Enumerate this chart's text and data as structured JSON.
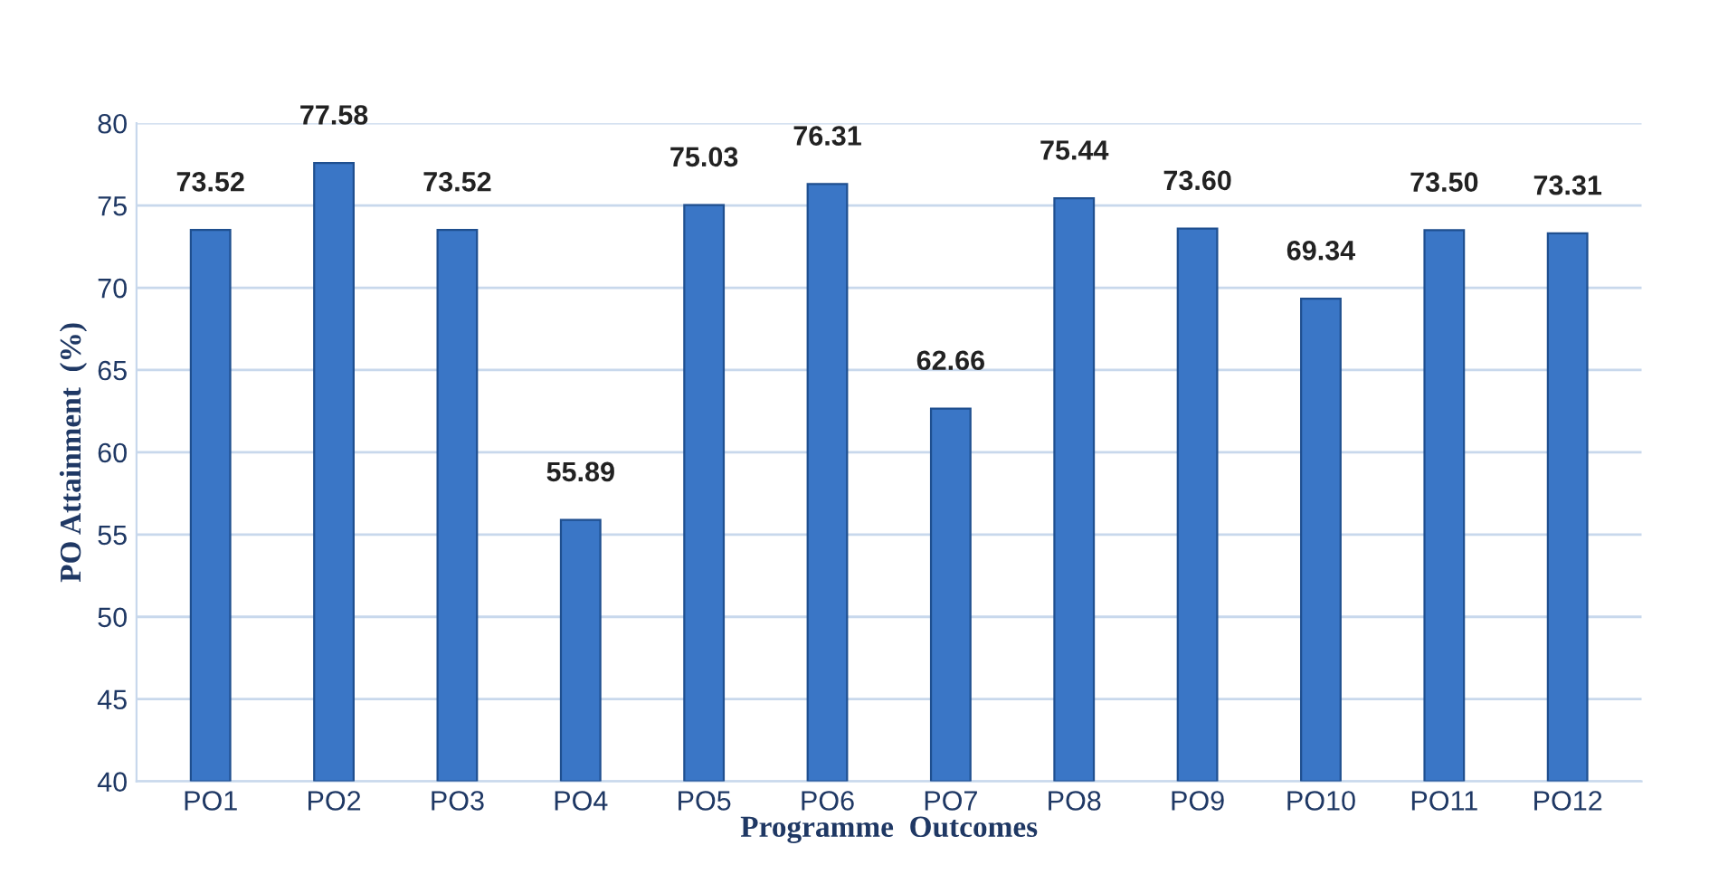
{
  "chart_data": {
    "type": "bar",
    "xlabel": "Programme  Outcomes",
    "ylabel": "PO Attainment  (%)",
    "categories": [
      "PO1",
      "PO2",
      "PO3",
      "PO4",
      "PO5",
      "PO6",
      "PO7",
      "PO8",
      "PO9",
      "PO10",
      "PO11",
      "PO12"
    ],
    "values": [
      73.52,
      77.58,
      73.52,
      55.89,
      75.03,
      76.31,
      62.66,
      75.44,
      73.6,
      69.34,
      73.5,
      73.31
    ],
    "value_labels": [
      "73.52",
      "77.58",
      "73.52",
      "55.89",
      "75.03",
      "76.31",
      "62.66",
      "75.44",
      "73.60",
      "69.34",
      "73.50",
      "73.31"
    ],
    "color": "#3a76c6",
    "ylim": [
      40,
      80
    ],
    "yticks": [
      40,
      45,
      50,
      55,
      60,
      65,
      70,
      75,
      80
    ],
    "grid": "y",
    "legend": false
  }
}
